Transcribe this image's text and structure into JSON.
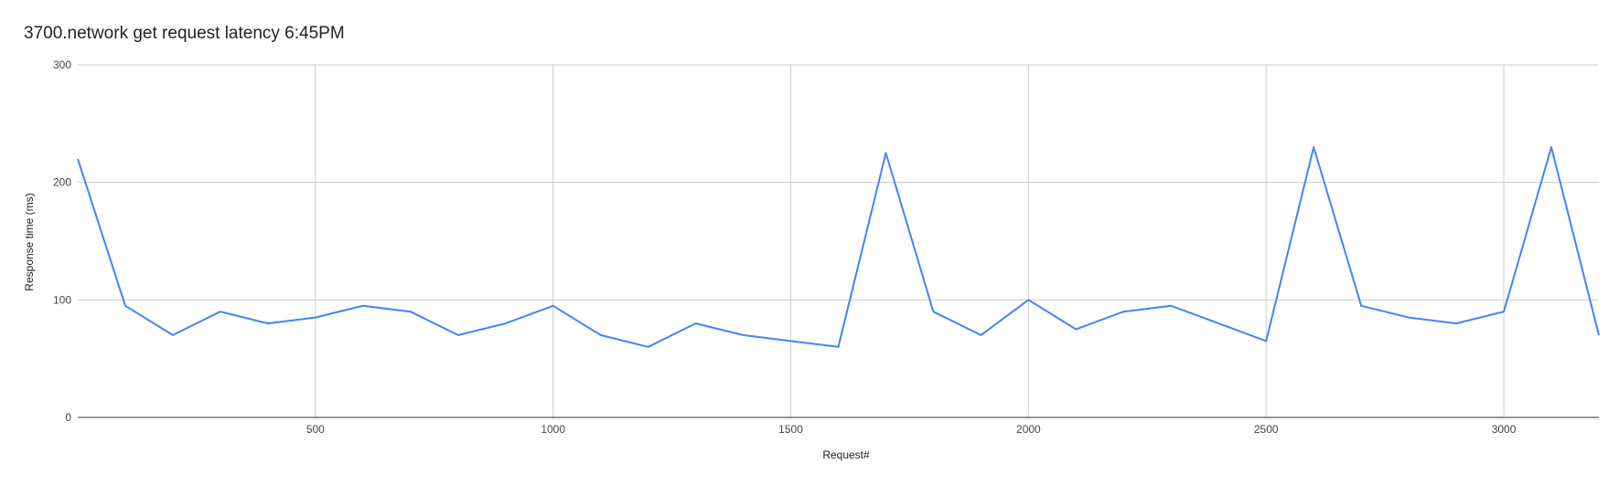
{
  "chart_data": {
    "type": "line",
    "title": "3700.network get request latency 6:45PM",
    "xlabel": "Request#",
    "ylabel": "Response time (ms)",
    "xlim": [
      0,
      3200
    ],
    "ylim": [
      0,
      300
    ],
    "x_ticks": [
      500,
      1000,
      1500,
      2000,
      2500,
      3000
    ],
    "y_ticks": [
      0,
      100,
      200,
      300
    ],
    "grid": true,
    "legend": "none",
    "series": [
      {
        "color": "#4285F4",
        "x": [
          0,
          100,
          200,
          300,
          400,
          500,
          600,
          700,
          800,
          900,
          1000,
          1100,
          1200,
          1300,
          1400,
          1500,
          1600,
          1700,
          1800,
          1900,
          2000,
          2100,
          2200,
          2300,
          2400,
          2500,
          2600,
          2700,
          2800,
          2900,
          3000,
          3100,
          3200
        ],
        "y": [
          220,
          95,
          70,
          90,
          80,
          85,
          95,
          90,
          70,
          80,
          95,
          70,
          60,
          80,
          70,
          65,
          60,
          225,
          90,
          70,
          100,
          75,
          90,
          95,
          80,
          65,
          230,
          95,
          85,
          80,
          90,
          230,
          70
        ]
      }
    ]
  }
}
